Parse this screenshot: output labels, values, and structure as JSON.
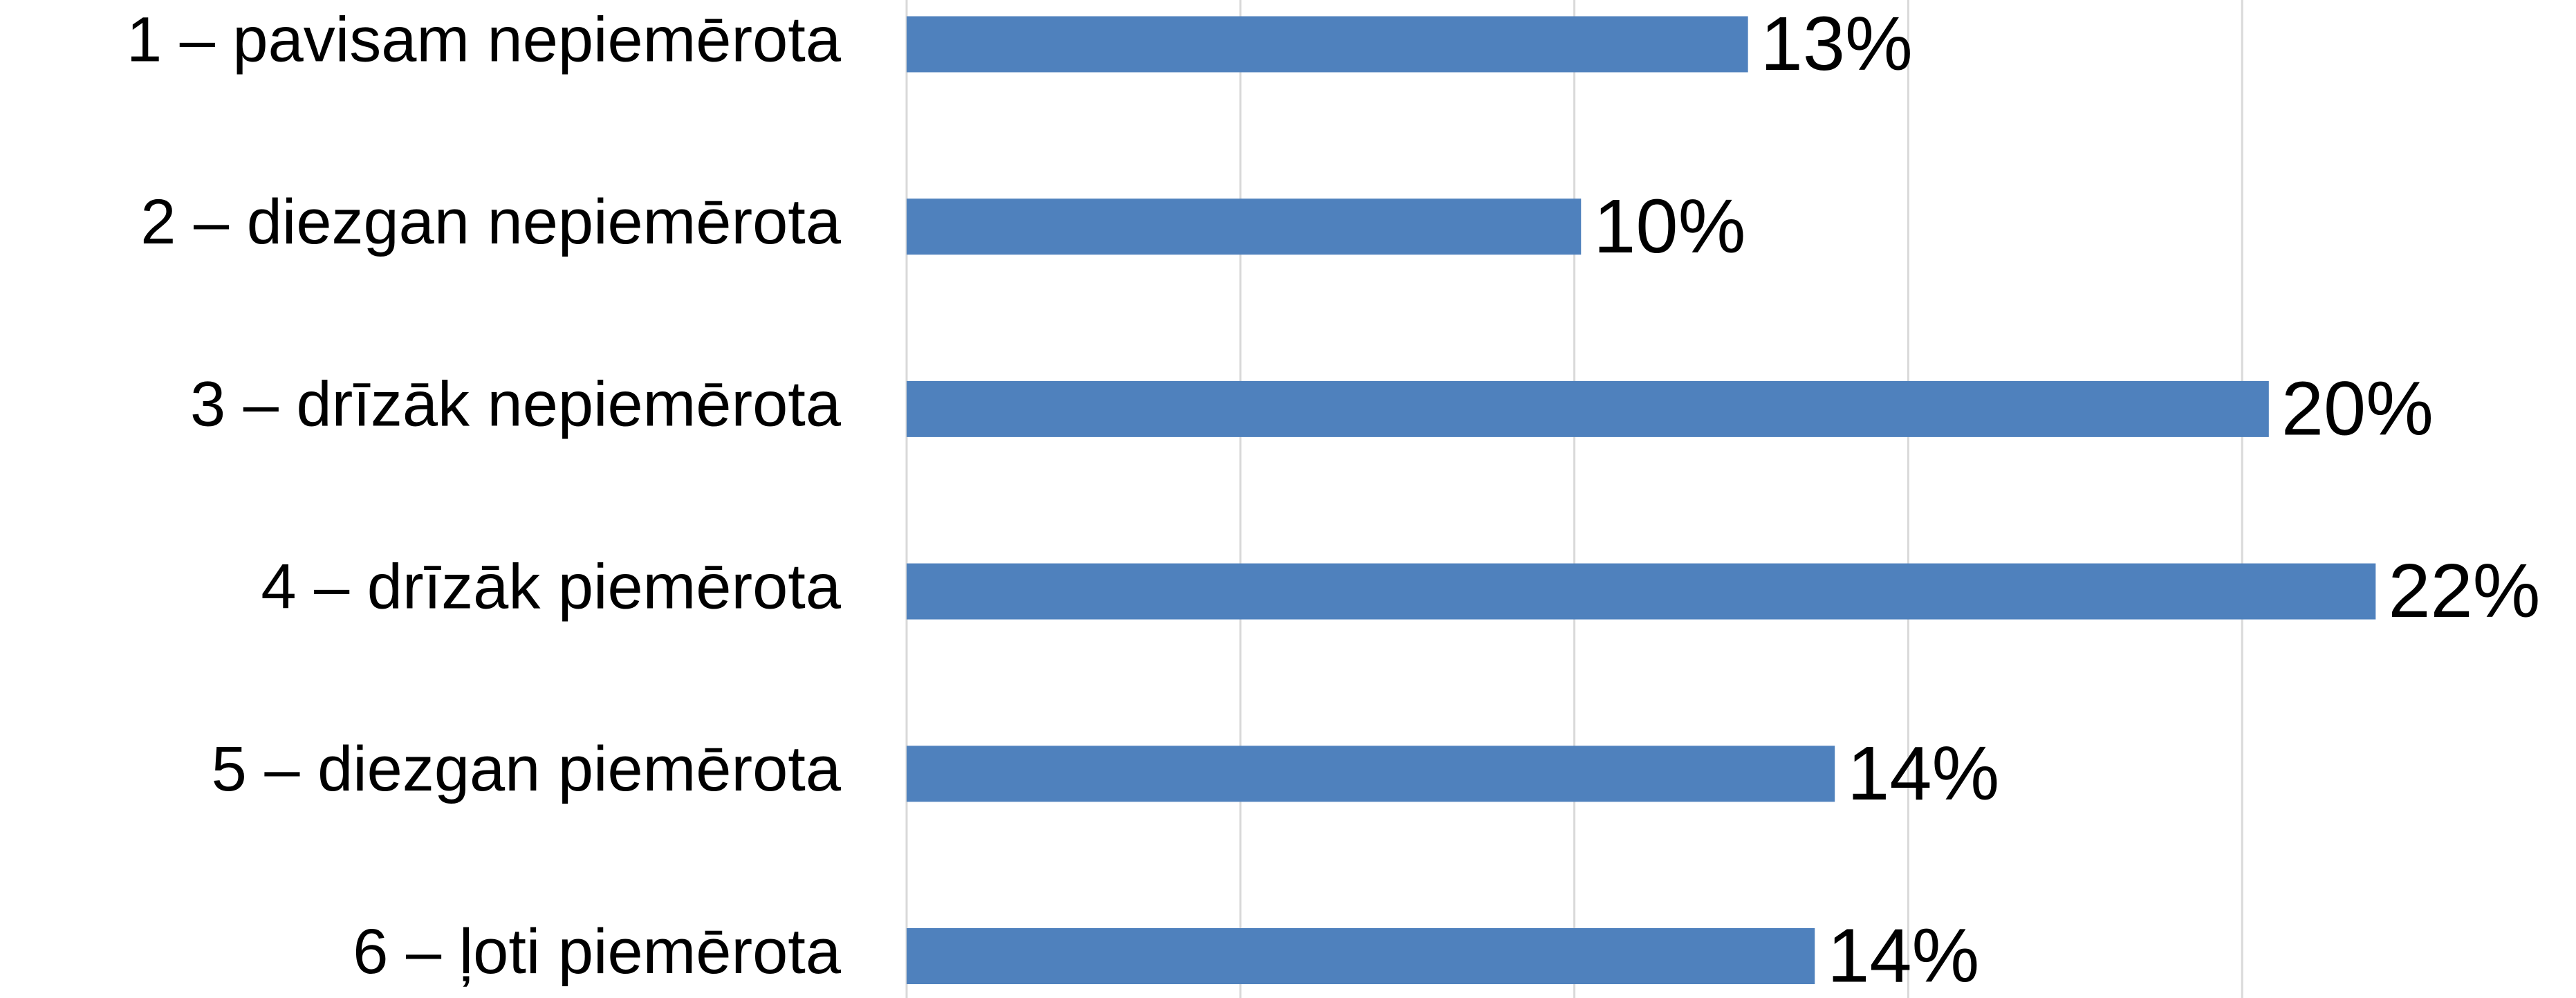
{
  "chart_data": {
    "type": "bar",
    "orientation": "horizontal",
    "categories": [
      "1 – pavisam nepiemērota",
      "2 – diezgan nepiemērota",
      "3 – drīzāk nepiemērota",
      "4 – drīzāk piemērota",
      "5 – diezgan piemērota",
      "6 – ļoti piemērota"
    ],
    "values": [
      12.6,
      10.1,
      20.4,
      22,
      13.9,
      13.6
    ],
    "value_labels": [
      "13%",
      "10%",
      "20%",
      "22%",
      "14%",
      "14%"
    ],
    "color": "#4f81bd",
    "xlim": [
      0,
      25
    ],
    "xticks": [
      0,
      5,
      10,
      15,
      20
    ],
    "grid": true
  }
}
